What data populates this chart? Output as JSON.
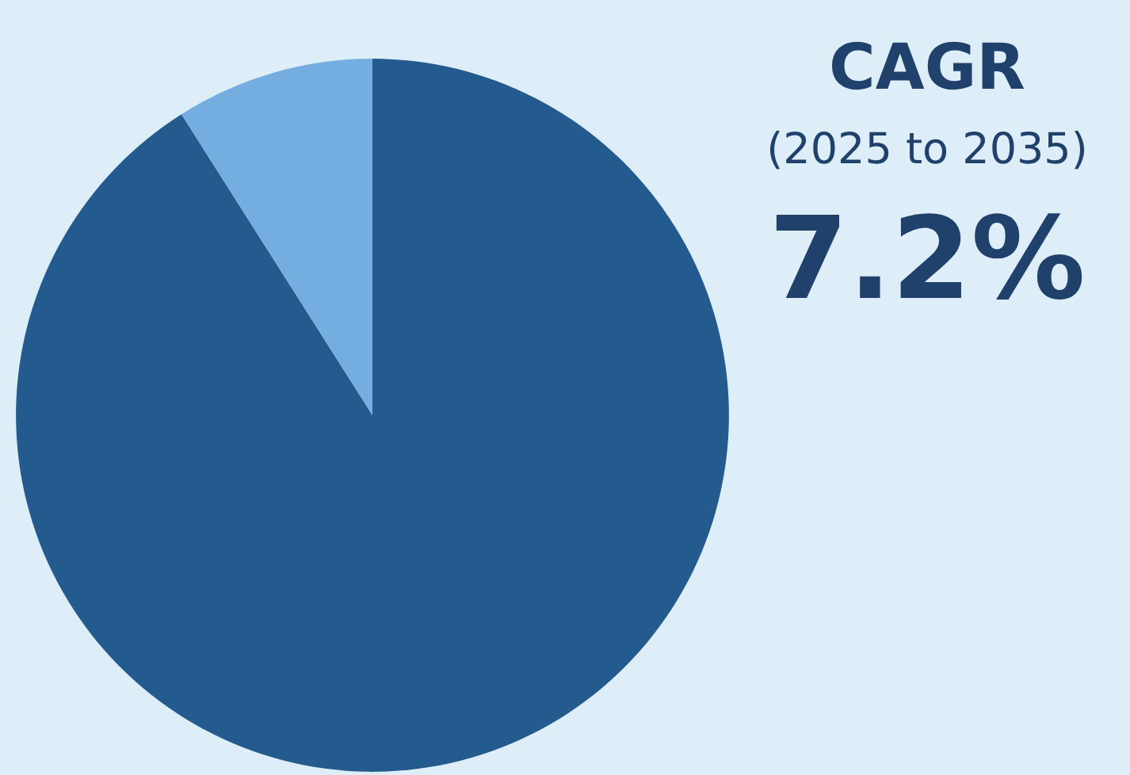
{
  "chart_data": {
    "type": "pie",
    "title": "CAGR",
    "subtitle": "(2025 to 2035)",
    "annotations": [
      "7.2%"
    ],
    "categories": [
      null,
      null
    ],
    "values": [
      91,
      9
    ],
    "colors": [
      "#245b8f",
      "#74aee0"
    ]
  }
}
